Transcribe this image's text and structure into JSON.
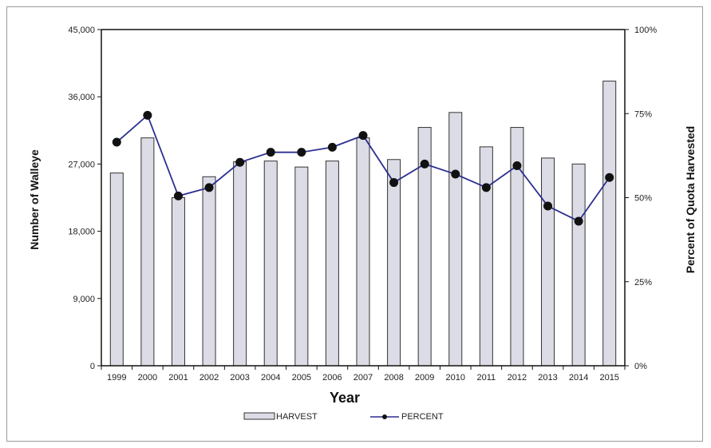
{
  "chart_data": {
    "type": "bar",
    "xlabel": "Year",
    "ylabel": "Number of Walleye",
    "y2label": "Percent of Quota Harvested",
    "categories": [
      "1999",
      "2000",
      "2001",
      "2002",
      "2003",
      "2004",
      "2005",
      "2006",
      "2007",
      "2008",
      "2009",
      "2010",
      "2011",
      "2012",
      "2013",
      "2014",
      "2015"
    ],
    "ylim": [
      0,
      45000
    ],
    "yticks": [
      "0",
      "9,000",
      "18,000",
      "27,000",
      "36,000",
      "45,000"
    ],
    "yticks_values": [
      0,
      9000,
      18000,
      27000,
      36000,
      45000
    ],
    "y2lim": [
      0,
      100
    ],
    "y2ticks": [
      "0%",
      "25%",
      "50%",
      "75%",
      "100%"
    ],
    "y2ticks_values": [
      0,
      25,
      50,
      75,
      100
    ],
    "grid": false,
    "legend_position": "bottom-center",
    "series": [
      {
        "name": "HARVEST",
        "type": "bar",
        "axis": "left",
        "color": "#dcdce6",
        "values": [
          25800,
          30500,
          22500,
          25300,
          27300,
          27400,
          26600,
          27400,
          30500,
          27600,
          31900,
          33900,
          29300,
          31900,
          27800,
          27000,
          38100
        ]
      },
      {
        "name": "PERCENT",
        "type": "line",
        "axis": "right",
        "color": "#2b2f8f",
        "marker_color": "#111111",
        "values": [
          66.5,
          74.5,
          50.5,
          53,
          60.5,
          63.5,
          63.5,
          65,
          68.5,
          54.5,
          60,
          57,
          53,
          59.5,
          47.5,
          43,
          56
        ]
      }
    ]
  }
}
